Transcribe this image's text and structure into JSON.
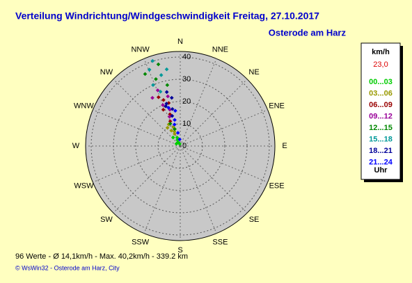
{
  "chart_data": {
    "type": "polar-scatter",
    "title": "Verteilung Windrichtung/Windgeschwindigkeit  Freitag, 27.10.2017",
    "subtitle": "Osterode am Harz",
    "categories": [
      "N",
      "NNE",
      "NE",
      "ENE",
      "E",
      "ESE",
      "SE",
      "SSE",
      "S",
      "SSW",
      "SW",
      "WSW",
      "W",
      "WNW",
      "NW",
      "NNW"
    ],
    "ylim": [
      0,
      40
    ],
    "yticks": [
      0,
      10,
      20,
      30,
      40
    ],
    "legend_title": "km/h",
    "legend_value": "23,0",
    "legend_footer": "Uhr",
    "series": [
      {
        "name": "00...03",
        "color": "#00cc00",
        "x": [
          330,
          335,
          320,
          340,
          345,
          300
        ],
        "values": [
          2,
          3,
          5,
          4,
          1,
          2
        ]
      },
      {
        "name": "03...06",
        "color": "#999900",
        "x": [
          335,
          330,
          340,
          338,
          325,
          332
        ],
        "values": [
          6,
          8,
          9,
          7,
          10,
          11
        ]
      },
      {
        "name": "06...09",
        "color": "#990000",
        "x": [
          338,
          342,
          335,
          345,
          340,
          336
        ],
        "values": [
          12,
          15,
          18,
          20,
          22,
          24
        ]
      },
      {
        "name": "09...12",
        "color": "#990099",
        "x": [
          340,
          344,
          337,
          330,
          346,
          338
        ],
        "values": [
          14,
          17,
          20,
          25,
          23,
          27
        ]
      },
      {
        "name": "12...15",
        "color": "#008800",
        "x": [
          342,
          336,
          348,
          340,
          334,
          345
        ],
        "values": [
          8,
          11,
          28,
          32,
          36,
          38
        ]
      },
      {
        "name": "15...18",
        "color": "#009999",
        "x": [
          340,
          336,
          345,
          350,
          338,
          342
        ],
        "values": [
          26,
          30,
          33,
          35,
          37,
          40.2
        ]
      },
      {
        "name": "18...21",
        "color": "#000099",
        "x": [
          345,
          348,
          342,
          350,
          346,
          340
        ],
        "values": [
          14,
          17,
          20,
          22,
          25,
          19
        ]
      },
      {
        "name": "21...24",
        "color": "#0000ff",
        "x": [
          350,
          345,
          348,
          352,
          355,
          343
        ],
        "values": [
          6,
          10,
          12,
          16,
          3,
          18
        ]
      }
    ],
    "footer": "96 Werte  -  Ø 14,1km/h  -  Max. 40,2km/h  -  339.2 km",
    "credit": "© WsWin32  -  Osterode am Harz, City"
  }
}
